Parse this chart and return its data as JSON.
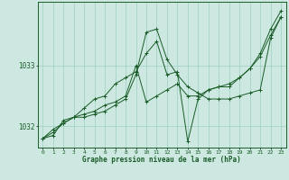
{
  "title": "",
  "xlabel": "Graphe pression niveau de la mer (hPa)",
  "ylabel": "",
  "background_color": "#cce8e0",
  "plot_bg_color": "#cce8e0",
  "grid_color": "#9ecfc4",
  "line_color": "#1a5c28",
  "xlim": [
    -0.5,
    23.5
  ],
  "ylim": [
    1031.65,
    1034.05
  ],
  "yticks": [
    1032,
    1033
  ],
  "xticks": [
    0,
    1,
    2,
    3,
    4,
    5,
    6,
    7,
    8,
    9,
    10,
    11,
    12,
    13,
    14,
    15,
    16,
    17,
    18,
    19,
    20,
    21,
    22,
    23
  ],
  "series": [
    [
      1031.8,
      1031.85,
      1032.1,
      1032.15,
      1032.3,
      1032.45,
      1032.5,
      1032.7,
      1032.8,
      1032.9,
      1033.2,
      1033.4,
      1032.85,
      1032.9,
      1031.75,
      1032.45,
      1032.6,
      1032.65,
      1032.65,
      1032.8,
      1032.95,
      1033.2,
      1033.6,
      1033.9
    ],
    [
      1031.8,
      1031.9,
      1032.05,
      1032.15,
      1032.15,
      1032.2,
      1032.25,
      1032.35,
      1032.45,
      1032.85,
      1033.55,
      1033.6,
      1033.1,
      1032.85,
      1032.65,
      1032.55,
      1032.45,
      1032.45,
      1032.45,
      1032.5,
      1032.55,
      1032.6,
      1033.45,
      1033.8
    ],
    [
      1031.8,
      1031.95,
      1032.05,
      1032.15,
      1032.2,
      1032.25,
      1032.35,
      1032.4,
      1032.5,
      1033.0,
      1032.4,
      1032.5,
      1032.6,
      1032.7,
      1032.5,
      1032.5,
      1032.6,
      1032.65,
      1032.7,
      1032.8,
      1032.95,
      1033.15,
      1033.5,
      1033.8
    ]
  ]
}
